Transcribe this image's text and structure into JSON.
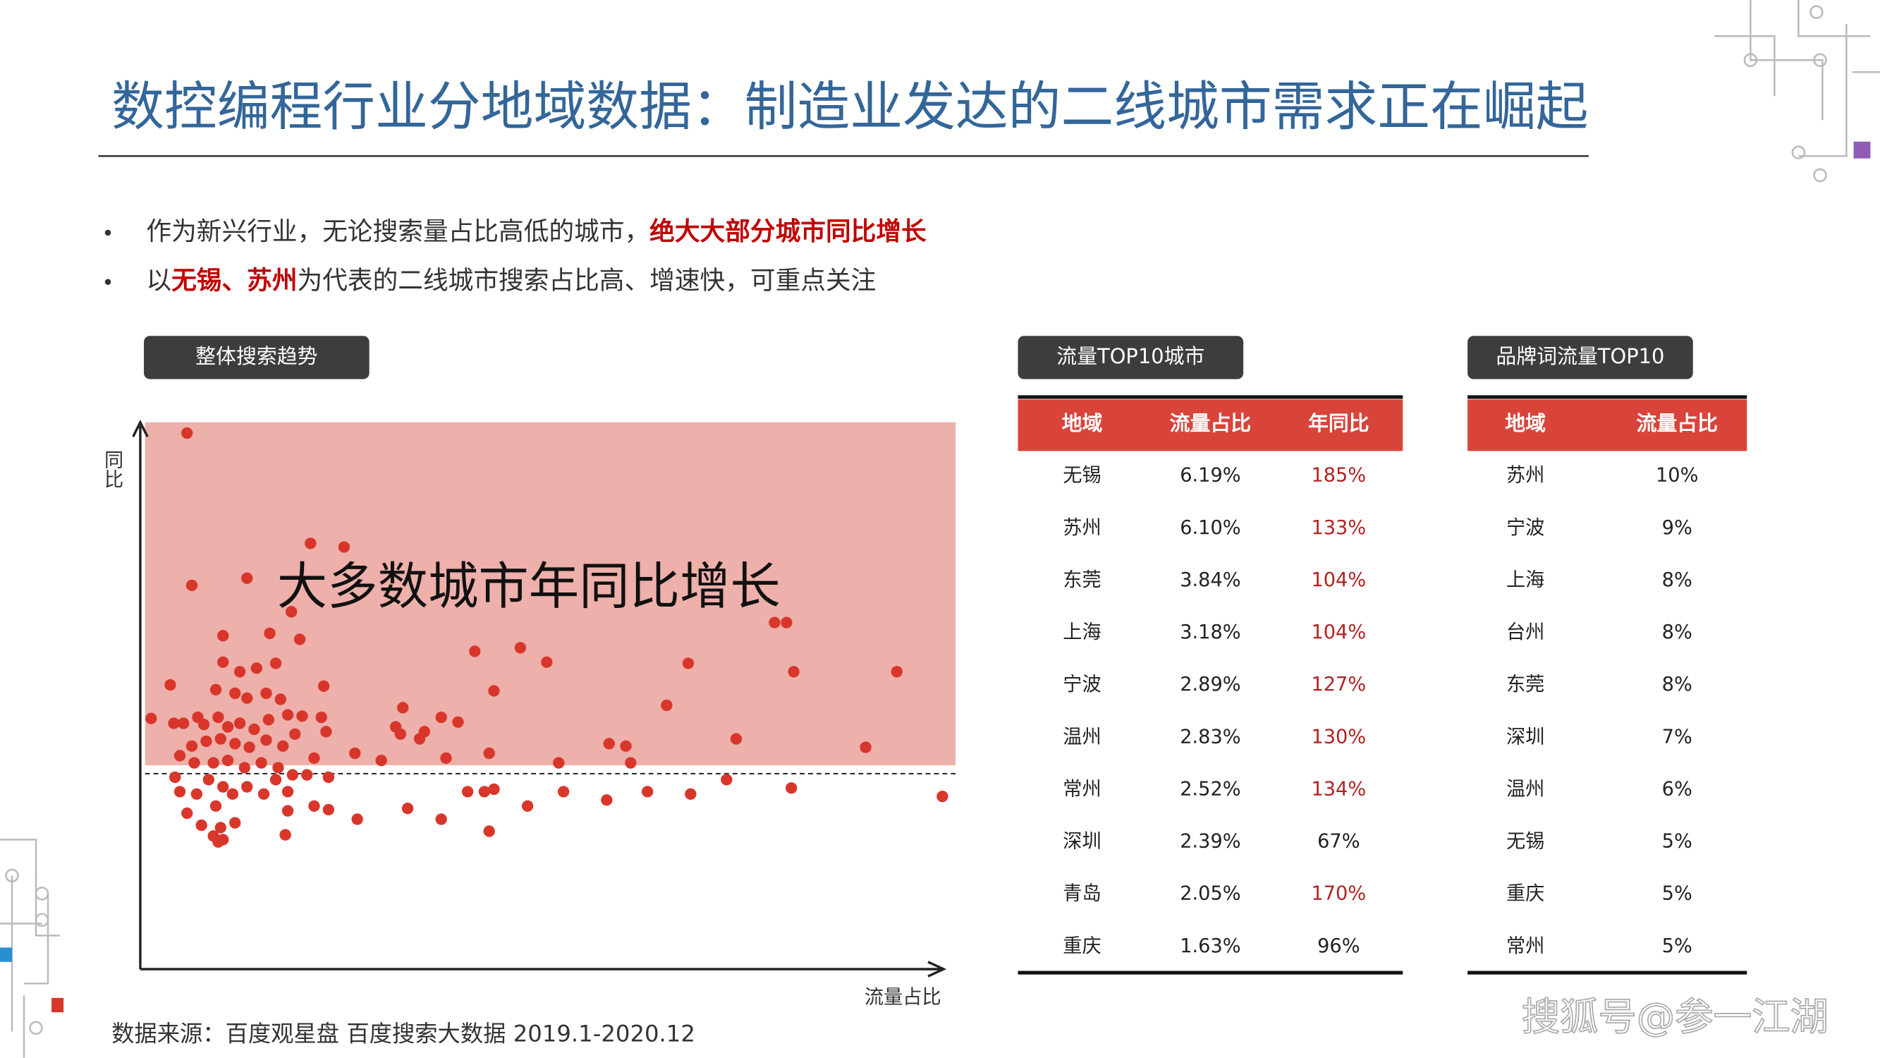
{
  "title": "数控编程行业分地域数据：制造业发达的二线城市需求正在崛起",
  "bullets": [
    [
      "作为新兴行业，无论搜索量占比高低的城市，",
      {
        "text": "绝大大部分城市同比增长",
        "color": "#c00000"
      }
    ],
    [
      "以",
      {
        "text": "无锡、苏州",
        "color": "#c00000"
      },
      "为代表的二线城市搜索占比高、增速快，可重点关注"
    ]
  ],
  "chart_data": {
    "type": "scatter",
    "title": "整体搜索趋势",
    "x_label": "流量占比",
    "y_label": "同比",
    "annotation": "大多数城市年同比增长",
    "color": "#d9362b",
    "xlim": [
      0,
      670
    ],
    "ylim": [
      0,
      453
    ],
    "x": [
      38,
      42,
      88,
      141,
      169,
      125,
      107,
      68,
      132,
      112,
      152,
      68,
      82,
      96,
      62,
      78,
      88,
      104,
      116,
      24,
      8,
      27,
      35,
      47,
      52,
      64,
      72,
      82,
      94,
      106,
      122,
      134,
      150,
      154,
      128,
      118,
      104,
      90,
      78,
      66,
      54,
      42,
      32,
      44,
      60,
      72,
      86,
      100,
      114,
      126,
      144,
      156,
      178,
      200,
      216,
      218,
      232,
      250,
      264,
      278,
      294,
      316,
      338,
      212,
      236,
      254,
      290,
      294,
      348,
      352,
      390,
      404,
      408,
      438,
      456,
      496,
      528,
      538,
      544,
      604,
      630,
      668,
      542,
      488,
      458,
      422,
      388,
      322,
      286,
      272,
      250,
      222,
      180,
      156,
      144,
      122,
      120,
      88,
      76,
      68,
      56,
      46,
      32,
      28,
      38,
      50,
      62,
      66,
      68,
      78,
      60,
      290,
      122,
      112,
      138,
      102,
      64
    ],
    "y": [
      447,
      320,
      326,
      355,
      352,
      298,
      280,
      278,
      275,
      255,
      236,
      256,
      248,
      251,
      233,
      230,
      226,
      230,
      225,
      237,
      209,
      205,
      205,
      210,
      204,
      210,
      202,
      205,
      200,
      208,
      212,
      211,
      210,
      198,
      196,
      186,
      191,
      185,
      188,
      192,
      190,
      186,
      178,
      172,
      172,
      174,
      168,
      172,
      168,
      162,
      176,
      160,
      180,
      174,
      196,
      218,
      192,
      210,
      206,
      265,
      232,
      268,
      256,
      202,
      198,
      176,
      180,
      150,
      172,
      148,
      188,
      186,
      172,
      220,
      255,
      192,
      289,
      289,
      248,
      185,
      248,
      144,
      151,
      158,
      146,
      148,
      141,
      136,
      148,
      148,
      125,
      134,
      125,
      133,
      136,
      132,
      112,
      152,
      146,
      152,
      158,
      146,
      148,
      160,
      130,
      120,
      136,
      118,
      108,
      122,
      111,
      115,
      148,
      158,
      162,
      146,
      106
    ]
  },
  "tables": [
    {
      "title": "流量TOP10城市",
      "columns": [
        "地域",
        "流量占比",
        "年同比"
      ],
      "rows": [
        [
          "无锡",
          "6.19%",
          "185%"
        ],
        [
          "苏州",
          "6.10%",
          "133%"
        ],
        [
          "东莞",
          "3.84%",
          "104%"
        ],
        [
          "上海",
          "3.18%",
          "104%"
        ],
        [
          "宁波",
          "2.89%",
          "127%"
        ],
        [
          "温州",
          "2.83%",
          "130%"
        ],
        [
          "常州",
          "2.52%",
          "134%"
        ],
        [
          "深圳",
          "2.39%",
          "67%"
        ],
        [
          "青岛",
          "2.05%",
          "170%"
        ],
        [
          "重庆",
          "1.63%",
          "96%"
        ]
      ]
    },
    {
      "title": "品牌词流量TOP10",
      "columns": [
        "地域",
        "流量占比"
      ],
      "rows": [
        [
          "苏州",
          "10%"
        ],
        [
          "宁波",
          "9%"
        ],
        [
          "上海",
          "8%"
        ],
        [
          "台州",
          "8%"
        ],
        [
          "东莞",
          "8%"
        ],
        [
          "深圳",
          "7%"
        ],
        [
          "温州",
          "6%"
        ],
        [
          "无锡",
          "5%"
        ],
        [
          "重庆",
          "5%"
        ],
        [
          "常州",
          "5%"
        ]
      ]
    }
  ],
  "source": "数据来源：百度观星盘 百度搜索大数据 2019.1-2020.12",
  "watermark": "搜狐号@参一江湖"
}
